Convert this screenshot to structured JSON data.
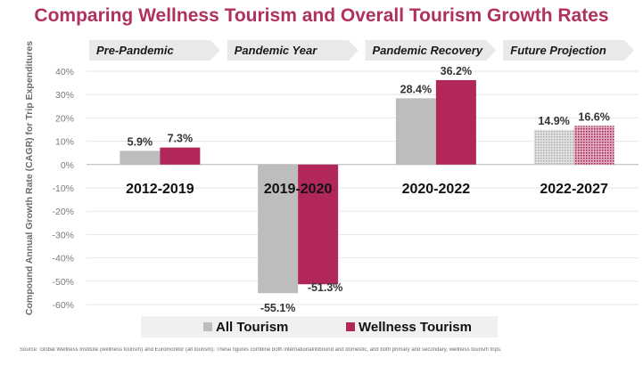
{
  "title": "Comparing Wellness Tourism and Overall Tourism Growth Rates",
  "source": "Source: Global Wellness Institute (wellness tourism) and Euromonitor (all tourism). These figures combine both international/inbound and domestic, and both primary and secondary, wellness tourism trips.",
  "chart_data": {
    "type": "bar",
    "title": "Comparing Wellness Tourism and Overall Tourism Growth Rates",
    "ylabel": "Compound Annual Growth Rate (CAGR) for Trip Expenditures",
    "ylim": [
      -60,
      40
    ],
    "yticks": [
      40,
      30,
      20,
      10,
      0,
      -10,
      -20,
      -30,
      -40,
      -50,
      -60
    ],
    "ytick_labels": [
      "40%",
      "30%",
      "20%",
      "10%",
      "0%",
      "-10%",
      "-20%",
      "-30%",
      "-40%",
      "-50%",
      "-60%"
    ],
    "grid": true,
    "legend_position": "bottom",
    "phases": [
      "Pre-Pandemic",
      "Pandemic Year",
      "Pandemic Recovery",
      "Future Projection"
    ],
    "categories": [
      "2012-2019",
      "2019-2020",
      "2020-2022",
      "2022-2027"
    ],
    "series": [
      {
        "name": "All Tourism",
        "values": [
          5.9,
          -55.1,
          28.4,
          14.9
        ],
        "labels": [
          "5.9%",
          "-55.1%",
          "28.4%",
          "14.9%"
        ],
        "color": "#bdbdbd"
      },
      {
        "name": "Wellness Tourism",
        "values": [
          7.3,
          -51.3,
          36.2,
          16.6
        ],
        "labels": [
          "7.3%",
          "-51.3%",
          "36.2%",
          "16.6%"
        ],
        "color": "#b2275a"
      }
    ],
    "projected_category_index": 3
  }
}
